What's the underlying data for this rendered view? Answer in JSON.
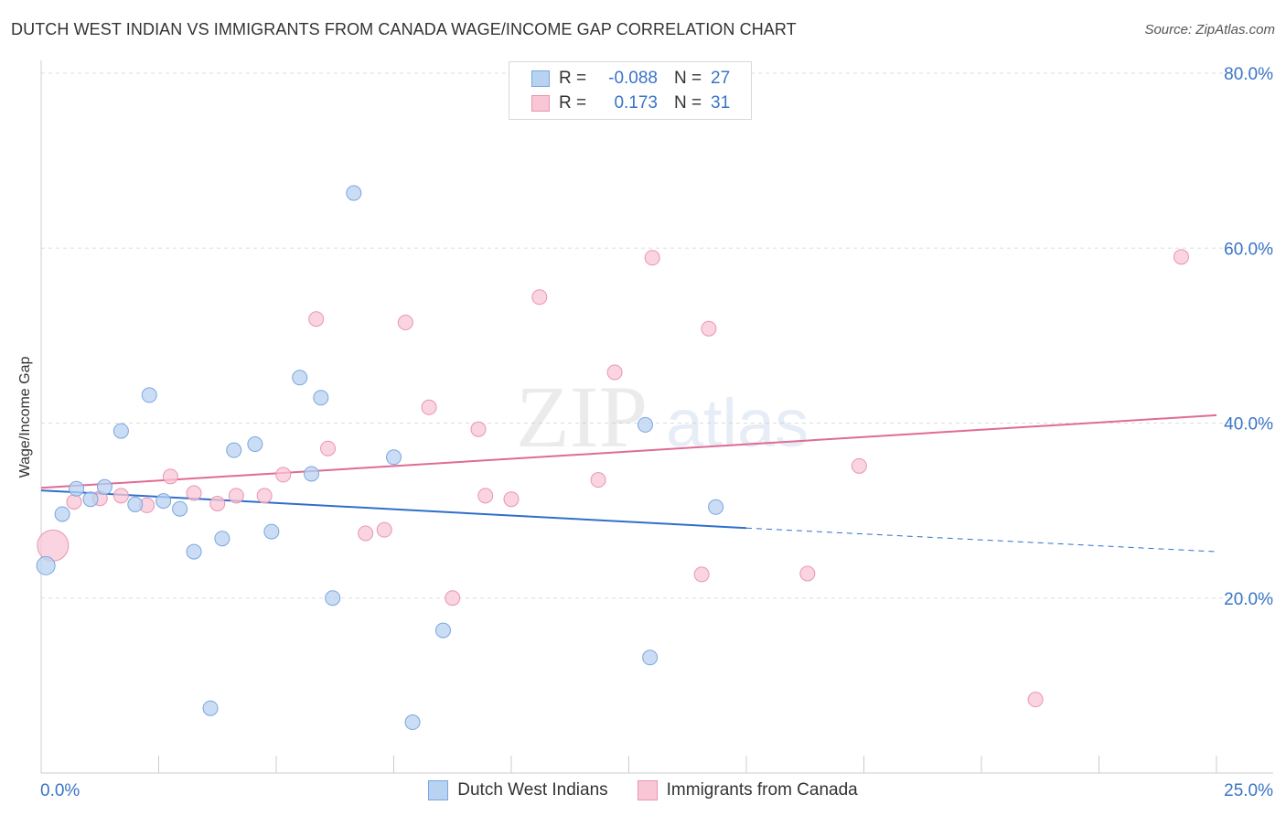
{
  "title": "DUTCH WEST INDIAN VS IMMIGRANTS FROM CANADA WAGE/INCOME GAP CORRELATION CHART",
  "source": "Source: ZipAtlas.com",
  "watermark": {
    "zip": "ZIP",
    "atlas": "atlas"
  },
  "legend": {
    "rows": [
      {
        "r_label": "R =",
        "r_value": "-0.088",
        "n_label": "N =",
        "n_value": "27"
      },
      {
        "r_label": "R =",
        "r_value": "0.173",
        "n_label": "N =",
        "n_value": "31"
      }
    ],
    "bottom": [
      "Dutch West Indians",
      "Immigrants from Canada"
    ]
  },
  "colors": {
    "blue_fill": "#b8d2f2",
    "blue_stroke": "#7aa6de",
    "blue_line": "#2f6fcc",
    "pink_fill": "#f8c6d5",
    "pink_stroke": "#e996b0",
    "pink_line": "#e06b93",
    "axis_text": "#3a74c8",
    "grid": "#dddddd"
  },
  "chart_data": {
    "type": "scatter",
    "title": "DUTCH WEST INDIAN VS IMMIGRANTS FROM CANADA WAGE/INCOME GAP CORRELATION CHART",
    "xlabel": "",
    "ylabel": "Wage/Income Gap",
    "xlim": [
      0,
      25
    ],
    "ylim": [
      0,
      80
    ],
    "x_tick_labels": [
      "0.0%",
      "25.0%"
    ],
    "y_ticks": [
      20,
      40,
      60,
      80
    ],
    "y_tick_labels": [
      "20.0%",
      "40.0%",
      "60.0%",
      "80.0%"
    ],
    "grid": true,
    "series": [
      {
        "name": "Dutch West Indians",
        "r": -0.088,
        "n": 27,
        "points": [
          [
            0.1,
            23.7
          ],
          [
            0.45,
            29.6
          ],
          [
            0.75,
            32.5
          ],
          [
            1.05,
            31.3
          ],
          [
            1.35,
            32.7
          ],
          [
            1.7,
            39.1
          ],
          [
            2.0,
            30.7
          ],
          [
            2.3,
            43.2
          ],
          [
            2.6,
            31.1
          ],
          [
            2.95,
            30.2
          ],
          [
            3.25,
            25.3
          ],
          [
            3.6,
            7.4
          ],
          [
            3.85,
            26.8
          ],
          [
            4.1,
            36.9
          ],
          [
            4.55,
            37.6
          ],
          [
            4.9,
            27.6
          ],
          [
            5.5,
            45.2
          ],
          [
            5.75,
            34.2
          ],
          [
            5.95,
            42.9
          ],
          [
            6.2,
            20.0
          ],
          [
            6.65,
            66.3
          ],
          [
            7.5,
            36.1
          ],
          [
            7.9,
            5.8
          ],
          [
            8.55,
            16.3
          ],
          [
            12.85,
            39.8
          ],
          [
            12.95,
            13.2
          ],
          [
            14.35,
            30.4
          ]
        ],
        "trend": {
          "x": [
            0,
            15
          ],
          "y": [
            32.3,
            28.0
          ]
        },
        "trend_dashed": {
          "x": [
            15,
            25
          ],
          "y": [
            28.0,
            25.3
          ]
        }
      },
      {
        "name": "Immigrants from Canada",
        "r": 0.173,
        "n": 31,
        "points": [
          [
            0.25,
            26.0
          ],
          [
            0.7,
            31.0
          ],
          [
            1.25,
            31.4
          ],
          [
            1.7,
            31.7
          ],
          [
            2.25,
            30.6
          ],
          [
            2.75,
            33.9
          ],
          [
            3.25,
            32.0
          ],
          [
            3.75,
            30.8
          ],
          [
            4.15,
            31.7
          ],
          [
            4.75,
            31.7
          ],
          [
            5.15,
            34.1
          ],
          [
            5.85,
            51.9
          ],
          [
            6.1,
            37.1
          ],
          [
            6.9,
            27.4
          ],
          [
            7.3,
            27.8
          ],
          [
            7.75,
            51.5
          ],
          [
            8.25,
            41.8
          ],
          [
            8.75,
            20.0
          ],
          [
            9.3,
            39.3
          ],
          [
            9.45,
            31.7
          ],
          [
            10.0,
            31.3
          ],
          [
            10.6,
            54.4
          ],
          [
            11.85,
            33.5
          ],
          [
            12.2,
            45.8
          ],
          [
            13.0,
            58.9
          ],
          [
            14.05,
            22.7
          ],
          [
            14.2,
            50.8
          ],
          [
            16.3,
            22.8
          ],
          [
            17.4,
            35.1
          ],
          [
            21.15,
            8.4
          ],
          [
            24.25,
            59.0
          ]
        ],
        "trend": {
          "x": [
            0,
            25
          ],
          "y": [
            32.6,
            40.9
          ]
        }
      }
    ]
  }
}
